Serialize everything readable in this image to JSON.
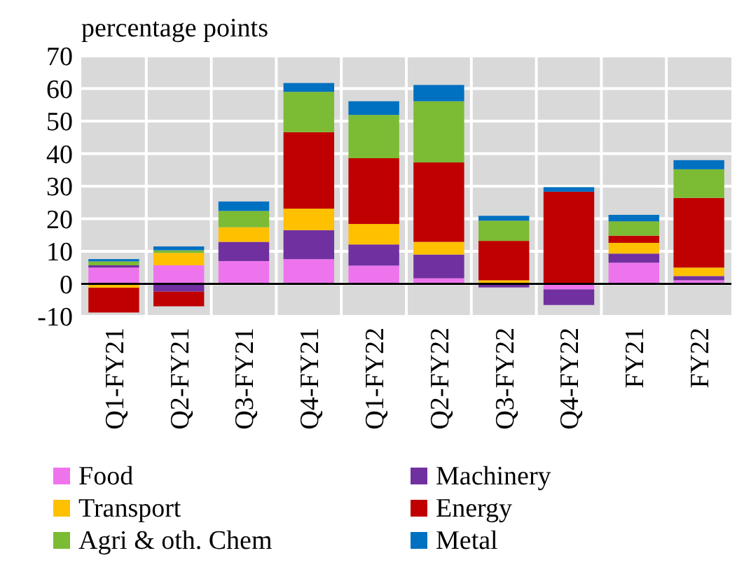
{
  "chart_data": {
    "type": "bar",
    "stacked": true,
    "ylabel": "percentage points",
    "categories": [
      "Q1-FY21",
      "Q2-FY21",
      "Q3-FY21",
      "Q4-FY21",
      "Q1-FY22",
      "Q2-FY22",
      "Q3-FY22",
      "Q4-FY22",
      "FY21",
      "FY22"
    ],
    "series": [
      {
        "name": "Food",
        "color": "#ee74ee",
        "values": [
          5,
          5.7,
          7,
          7.6,
          5.6,
          1.7,
          0,
          -1.7,
          6.5,
          1.1
        ]
      },
      {
        "name": "Machinery",
        "color": "#7030a0",
        "values": [
          0.7,
          -2.4,
          5.9,
          8.9,
          6.5,
          7.3,
          -1.1,
          -4.8,
          2.8,
          1.3
        ]
      },
      {
        "name": "Transport",
        "color": "#ffc000",
        "values": [
          -1.2,
          3.8,
          4.5,
          6.6,
          6.3,
          3.9,
          1.1,
          null,
          3.3,
          2.6
        ]
      },
      {
        "name": "Energy",
        "color": "#c00000",
        "values": [
          -7.6,
          -4.5,
          0,
          23.5,
          20.2,
          24.4,
          12.1,
          28.3,
          2.2,
          21.4
        ]
      },
      {
        "name": "Agri & oth. Chem",
        "color": "#7cbb34",
        "values": [
          1.2,
          0.8,
          5,
          12.4,
          13.3,
          18.8,
          6.2,
          0,
          4.4,
          8.8
        ]
      },
      {
        "name": "Metal",
        "color": "#0070c0",
        "values": [
          0.7,
          1.2,
          2.9,
          2.7,
          4.2,
          5,
          1.5,
          1.4,
          2,
          2.8
        ]
      }
    ],
    "ylim": [
      -10,
      70
    ],
    "yticks": [
      -10,
      0,
      10,
      20,
      30,
      40,
      50,
      60,
      70
    ],
    "grid": true,
    "legend": "bottom"
  }
}
